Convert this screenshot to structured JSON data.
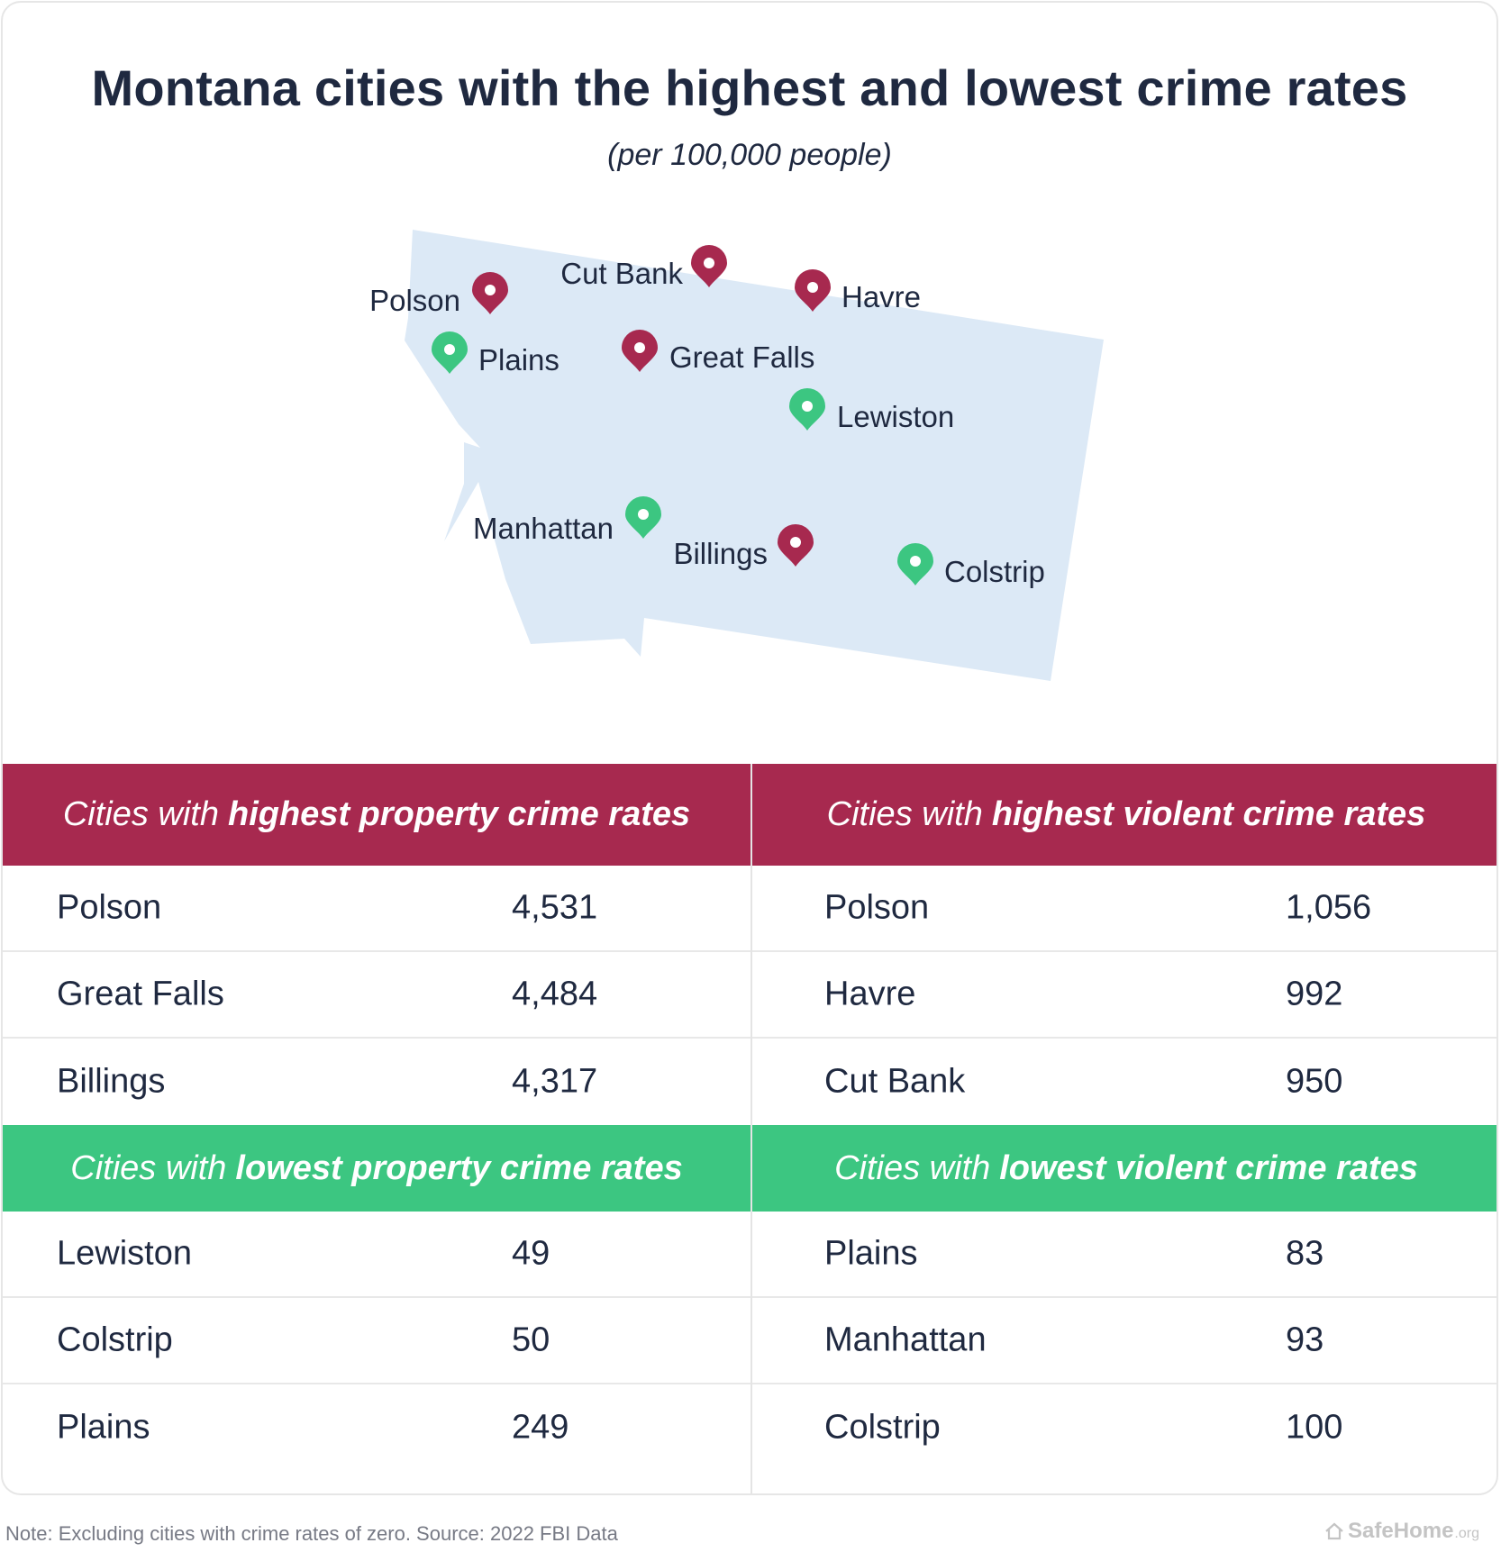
{
  "title": "Montana cities with the highest and lowest crime rates",
  "subtitle": "(per 100,000 people)",
  "colors": {
    "high": "#a7294f",
    "low": "#3cc681",
    "state_fill": "#dce9f6",
    "text": "#1f2940"
  },
  "map": {
    "markers": [
      {
        "label": "Polson",
        "type": "high",
        "icon": "map-pin-icon"
      },
      {
        "label": "Cut Bank",
        "type": "high",
        "icon": "map-pin-icon"
      },
      {
        "label": "Havre",
        "type": "high",
        "icon": "map-pin-icon"
      },
      {
        "label": "Plains",
        "type": "low",
        "icon": "map-pin-icon"
      },
      {
        "label": "Great Falls",
        "type": "high",
        "icon": "map-pin-icon"
      },
      {
        "label": "Lewiston",
        "type": "low",
        "icon": "map-pin-icon"
      },
      {
        "label": "Manhattan",
        "type": "low",
        "icon": "map-pin-icon"
      },
      {
        "label": "Billings",
        "type": "high",
        "icon": "map-pin-icon"
      },
      {
        "label": "Colstrip",
        "type": "low",
        "icon": "map-pin-icon"
      }
    ]
  },
  "tables": {
    "highest_property": {
      "heading_pre": "Cities with",
      "heading_bold": "highest property crime rates",
      "rows": [
        {
          "city": "Polson",
          "value": "4,531"
        },
        {
          "city": "Great Falls",
          "value": "4,484"
        },
        {
          "city": "Billings",
          "value": "4,317"
        }
      ]
    },
    "highest_violent": {
      "heading_pre": "Cities with",
      "heading_bold": "highest violent crime rates",
      "rows": [
        {
          "city": "Polson",
          "value": "1,056"
        },
        {
          "city": "Havre",
          "value": "992"
        },
        {
          "city": "Cut Bank",
          "value": "950"
        }
      ]
    },
    "lowest_property": {
      "heading_pre": "Cities with",
      "heading_bold": "lowest property crime rates",
      "rows": [
        {
          "city": "Lewiston",
          "value": "49"
        },
        {
          "city": "Colstrip",
          "value": "50"
        },
        {
          "city": "Plains",
          "value": "249"
        }
      ]
    },
    "lowest_violent": {
      "heading_pre": "Cities with",
      "heading_bold": "lowest violent crime rates",
      "rows": [
        {
          "city": "Plains",
          "value": "83"
        },
        {
          "city": "Manhattan",
          "value": "93"
        },
        {
          "city": "Colstrip",
          "value": "100"
        }
      ]
    }
  },
  "footnote": "Note: Excluding cities with crime rates of zero. Source: 2022 FBI Data",
  "logo": {
    "name": "SafeHome",
    "suffix": ".org"
  }
}
